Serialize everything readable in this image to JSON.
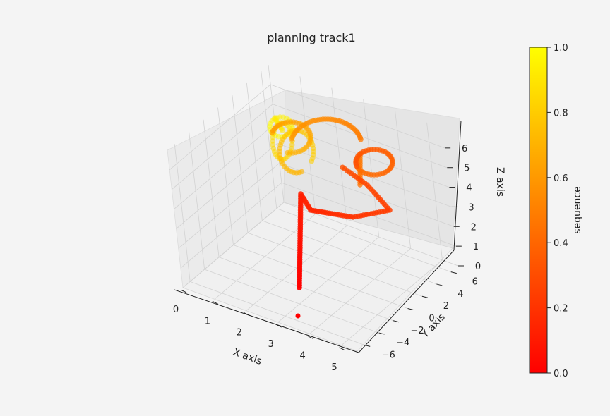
{
  "chart_data": {
    "type": "scatter",
    "projection": "3d",
    "title": "planning track1",
    "xlabel": "X axis",
    "ylabel": "Y axis",
    "zlabel": "Z axis",
    "xlim": [
      0,
      5.5
    ],
    "ylim": [
      -7,
      7
    ],
    "zlim": [
      0,
      7
    ],
    "xticks": [
      "0",
      "1",
      "2",
      "3",
      "4",
      "5"
    ],
    "yticks": [
      "−6",
      "−4",
      "−2",
      "0",
      "2",
      "4",
      "6"
    ],
    "zticks": [
      "0",
      "1",
      "2",
      "3",
      "4",
      "5",
      "6"
    ],
    "grid": true,
    "colorbar": {
      "label": "sequence",
      "colormap": "autumn",
      "color_low": "#ff0000",
      "color_high": "#ffff00",
      "range": [
        0,
        1
      ],
      "ticks": [
        "0.0",
        "0.2",
        "0.4",
        "0.6",
        "0.8",
        "1.0"
      ]
    },
    "point_count": 360,
    "sequence_range": [
      0,
      1
    ],
    "sample_points": [
      {
        "x": 4.3,
        "y": -4.0,
        "z": 0.0,
        "sequence": 0.0
      },
      {
        "x": 4.4,
        "y": -1.0,
        "z": 0.5,
        "sequence": 0.05
      },
      {
        "x": 4.6,
        "y": 4.5,
        "z": 0.8,
        "sequence": 0.18
      },
      {
        "x": 4.6,
        "y": 4.5,
        "z": 3.0,
        "sequence": 0.22
      },
      {
        "x": 3.8,
        "y": 5.0,
        "z": 3.2,
        "sequence": 0.28
      },
      {
        "x": 2.5,
        "y": 5.5,
        "z": 3.5,
        "sequence": 0.34
      },
      {
        "x": 1.8,
        "y": 4.5,
        "z": 5.5,
        "sequence": 0.42
      },
      {
        "x": 1.5,
        "y": 2.5,
        "z": 6.0,
        "sequence": 0.55
      },
      {
        "x": 0.7,
        "y": 2.0,
        "z": 5.8,
        "sequence": 0.7
      },
      {
        "x": 0.3,
        "y": 2.0,
        "z": 5.5,
        "sequence": 0.85
      },
      {
        "x": 0.2,
        "y": 2.5,
        "z": 5.0,
        "sequence": 1.0
      }
    ]
  }
}
